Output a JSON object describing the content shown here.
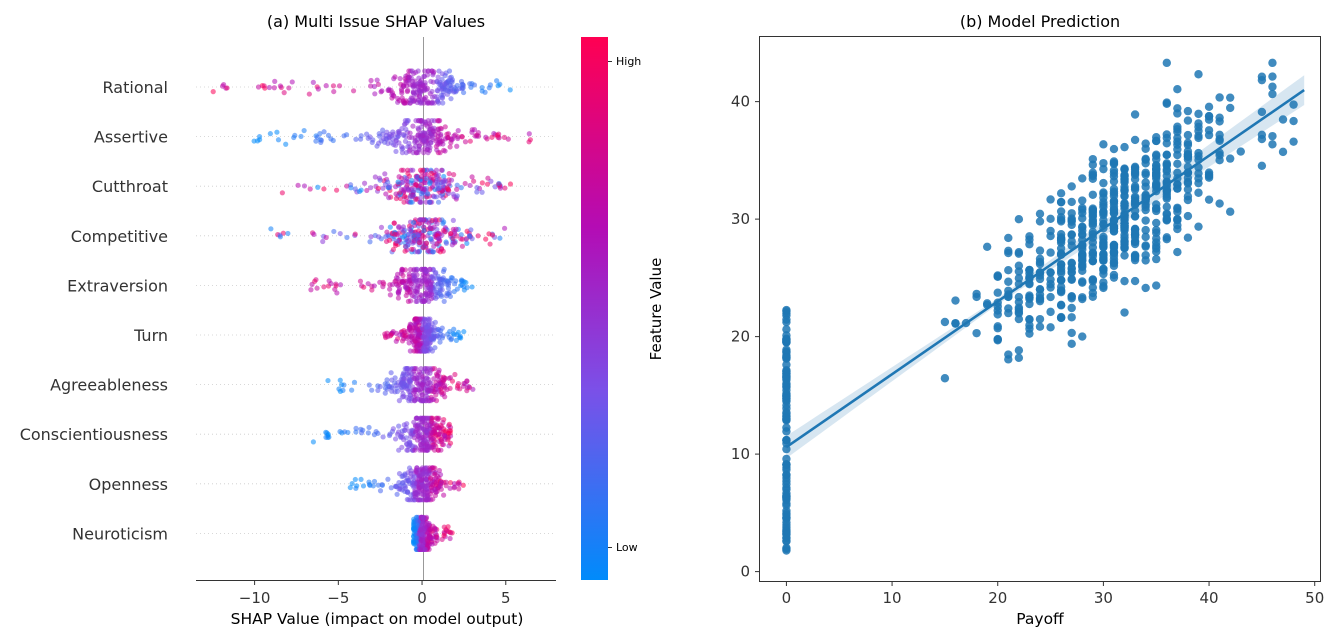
{
  "chart_data": [
    {
      "type": "scatter",
      "subtype": "shap-beeswarm",
      "title": "(a) Multi Issue SHAP Values",
      "xlabel": "SHAP Value (impact on model output)",
      "xlim": [
        -13.5,
        8
      ],
      "xticks": [
        -10,
        -5,
        0,
        5
      ],
      "features": [
        "Rational",
        "Assertive",
        "Cutthroat",
        "Competitive",
        "Extraversion",
        "Turn",
        "Agreeableness",
        "Conscientiousness",
        "Openness",
        "Neuroticism"
      ],
      "feature_ranges": [
        {
          "name": "Rational",
          "min": -12.5,
          "max": 5.5,
          "pattern": "high-left"
        },
        {
          "name": "Assertive",
          "min": -10.3,
          "max": 7.0,
          "pattern": "high-right"
        },
        {
          "name": "Cutthroat",
          "min": -8.7,
          "max": 5.5,
          "pattern": "mixed"
        },
        {
          "name": "Competitive",
          "min": -9.1,
          "max": 5.0,
          "pattern": "mixed"
        },
        {
          "name": "Extraversion",
          "min": -6.7,
          "max": 3.1,
          "pattern": "high-left"
        },
        {
          "name": "Turn",
          "min": -2.3,
          "max": 2.5,
          "pattern": "high-left"
        },
        {
          "name": "Agreeableness",
          "min": -5.9,
          "max": 3.1,
          "pattern": "high-right"
        },
        {
          "name": "Conscientiousness",
          "min": -6.8,
          "max": 1.7,
          "pattern": "high-right"
        },
        {
          "name": "Openness",
          "min": -4.6,
          "max": 2.6,
          "pattern": "high-right"
        },
        {
          "name": "Neuroticism",
          "min": -0.5,
          "max": 1.8,
          "pattern": "high-right"
        }
      ],
      "colorbar": {
        "title": "Feature Value",
        "high_label": "High",
        "low_label": "Low",
        "colors": [
          "#008bfb",
          "#7b50e8",
          "#b40cb4",
          "#ff0052"
        ]
      }
    },
    {
      "type": "scatter",
      "title": "(b) Model Prediction",
      "xlabel": "Payoff",
      "ylabel": "",
      "xlim": [
        -2.5,
        50.5
      ],
      "ylim": [
        -0.8,
        45.5
      ],
      "xticks": [
        0,
        10,
        20,
        30,
        40,
        50
      ],
      "yticks": [
        0,
        10,
        20,
        30,
        40
      ],
      "point_color": "#1f77b4",
      "regression": {
        "intercept": 10.6,
        "slope": 0.62
      },
      "groups": [
        {
          "x_min": 0,
          "x_max": 0,
          "y_min": 1.5,
          "y_max": 22.5
        },
        {
          "x_min": 15,
          "x_max": 49,
          "y_min": 15.4,
          "y_max": 43.3
        }
      ]
    }
  ]
}
